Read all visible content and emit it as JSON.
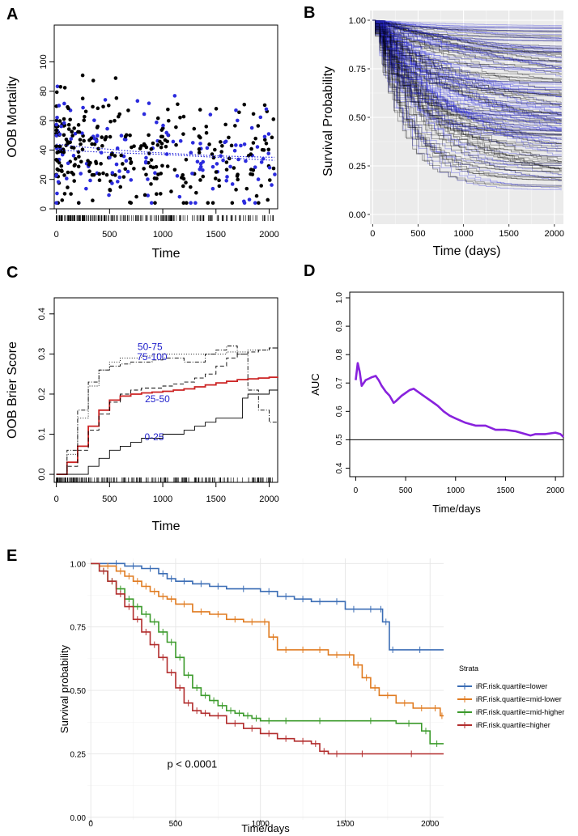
{
  "chart_data": [
    {
      "panel": "A",
      "type": "scatter",
      "xlabel": "Time",
      "ylabel": "OOB Mortality",
      "xlim": [
        -20,
        2080
      ],
      "ylim": [
        0,
        125
      ],
      "xticks": [
        0,
        500,
        1000,
        1500,
        2000
      ],
      "yticks": [
        0,
        20,
        40,
        60,
        80,
        100
      ],
      "colors": {
        "event": "#000000",
        "censored": "#2b2bdd"
      },
      "trend": {
        "x": [
          0,
          250,
          500,
          750,
          1000,
          1250,
          1500,
          1750,
          2050
        ],
        "y": [
          44,
          42,
          40.5,
          39,
          38,
          37,
          36,
          35.5,
          35
        ]
      },
      "trend2": {
        "x": [
          0,
          300,
          600,
          1000,
          1500,
          2050
        ],
        "y": [
          40,
          39,
          38,
          37,
          35,
          33
        ]
      }
    },
    {
      "panel": "B",
      "type": "line",
      "xlabel": "Time (days)",
      "ylabel": "Survival Probability",
      "xlim": [
        -30,
        2100
      ],
      "ylim": [
        -0.05,
        1.05
      ],
      "xticks": [
        0,
        500,
        1000,
        1500,
        2000
      ],
      "yticks": [
        "0.00",
        "0.25",
        "0.50",
        "0.75",
        "1.00"
      ],
      "colors": {
        "a": "#000000",
        "b": "#2b2bdd"
      }
    },
    {
      "panel": "C",
      "type": "line",
      "xlabel": "Time",
      "ylabel": "OOB Brier Score",
      "xlim": [
        -20,
        2080
      ],
      "ylim": [
        -0.02,
        0.44
      ],
      "xticks": [
        0,
        500,
        1000,
        1500,
        2000
      ],
      "yticks": [
        "0.0",
        "0.1",
        "0.2",
        "0.3",
        "0.4"
      ],
      "annotations": [
        {
          "text": "50-75",
          "x": 880,
          "y": 0.31
        },
        {
          "text": "75-100",
          "x": 900,
          "y": 0.285
        },
        {
          "text": "25-50",
          "x": 950,
          "y": 0.18
        },
        {
          "text": "0-25",
          "x": 920,
          "y": 0.085
        }
      ],
      "series": [
        {
          "style": "overall",
          "color": "#cc2222",
          "x": [
            0,
            100,
            200,
            300,
            400,
            500,
            600,
            700,
            800,
            900,
            1000,
            1100,
            1200,
            1300,
            1400,
            1500,
            1600,
            1700,
            1800,
            1900,
            2000,
            2080
          ],
          "y": [
            0,
            0.03,
            0.07,
            0.12,
            0.16,
            0.185,
            0.195,
            0.2,
            0.203,
            0.205,
            0.207,
            0.21,
            0.213,
            0.218,
            0.223,
            0.228,
            0.232,
            0.236,
            0.238,
            0.24,
            0.242,
            0.243
          ]
        },
        {
          "style": "solid",
          "color": "#000000",
          "x": [
            0,
            200,
            300,
            400,
            500,
            600,
            700,
            800,
            900,
            1000,
            1100,
            1200,
            1300,
            1400,
            1500,
            1600,
            1700,
            1750,
            1800,
            1900,
            2000,
            2080
          ],
          "y": [
            0,
            0,
            0.02,
            0.04,
            0.06,
            0.07,
            0.08,
            0.09,
            0.09,
            0.1,
            0.1,
            0.11,
            0.12,
            0.13,
            0.14,
            0.14,
            0.14,
            0.19,
            0.2,
            0.2,
            0.21,
            0.21
          ]
        },
        {
          "style": "dashed",
          "color": "#000000",
          "x": [
            0,
            100,
            200,
            300,
            400,
            500,
            600,
            700,
            800,
            900,
            1000,
            1100,
            1200,
            1300,
            1400,
            1500,
            1600,
            1700,
            1800,
            1900,
            2000,
            2080
          ],
          "y": [
            0,
            0.02,
            0.06,
            0.11,
            0.15,
            0.18,
            0.2,
            0.21,
            0.215,
            0.215,
            0.22,
            0.225,
            0.23,
            0.24,
            0.25,
            0.27,
            0.29,
            0.3,
            0.305,
            0.31,
            0.315,
            0.32
          ]
        },
        {
          "style": "dotted",
          "color": "#000000",
          "x": [
            0,
            100,
            200,
            300,
            400,
            500,
            600,
            700,
            800,
            900,
            1000,
            1200,
            1400,
            1600,
            1800,
            2000,
            2080
          ],
          "y": [
            0,
            0.05,
            0.14,
            0.22,
            0.26,
            0.28,
            0.29,
            0.29,
            0.295,
            0.3,
            0.3,
            0.3,
            0.3,
            0.305,
            0.31,
            0.315,
            0.315
          ]
        },
        {
          "style": "dotdash",
          "color": "#000000",
          "x": [
            0,
            100,
            200,
            300,
            400,
            500,
            600,
            700,
            800,
            900,
            1000,
            1100,
            1200,
            1300,
            1400,
            1500,
            1600,
            1700,
            1800,
            1900,
            2000,
            2080
          ],
          "y": [
            0,
            0.06,
            0.16,
            0.23,
            0.26,
            0.27,
            0.275,
            0.28,
            0.28,
            0.285,
            0.29,
            0.29,
            0.28,
            0.28,
            0.3,
            0.31,
            0.32,
            0.3,
            0.21,
            0.16,
            0.13,
            0.125
          ]
        }
      ]
    },
    {
      "panel": "D",
      "type": "line",
      "xlabel": "Time/days",
      "ylabel": "AUC",
      "xlim": [
        -60,
        2080
      ],
      "ylim": [
        0.37,
        1.02
      ],
      "xticks": [
        0,
        500,
        1000,
        1500,
        2000
      ],
      "yticks": [
        "0.4",
        "0.5",
        "0.6",
        "0.7",
        "0.8",
        "0.9",
        "1.0"
      ],
      "hline": 0.5,
      "color": "#8822dd",
      "x": [
        0,
        20,
        40,
        60,
        80,
        100,
        130,
        160,
        200,
        230,
        260,
        300,
        340,
        380,
        400,
        430,
        460,
        500,
        540,
        580,
        620,
        660,
        700,
        760,
        820,
        880,
        940,
        1000,
        1100,
        1200,
        1300,
        1400,
        1500,
        1600,
        1700,
        1750,
        1800,
        1900,
        2000,
        2050,
        2080
      ],
      "y": [
        0.71,
        0.77,
        0.74,
        0.69,
        0.7,
        0.71,
        0.715,
        0.72,
        0.725,
        0.71,
        0.69,
        0.67,
        0.655,
        0.63,
        0.635,
        0.645,
        0.655,
        0.665,
        0.675,
        0.68,
        0.67,
        0.66,
        0.65,
        0.635,
        0.62,
        0.6,
        0.585,
        0.575,
        0.56,
        0.55,
        0.55,
        0.535,
        0.535,
        0.53,
        0.52,
        0.515,
        0.52,
        0.52,
        0.525,
        0.52,
        0.51
      ]
    },
    {
      "panel": "E",
      "type": "line",
      "xlabel": "Time/days",
      "ylabel": "Survival probability",
      "xlim": [
        -20,
        2080
      ],
      "ylim": [
        -0.01,
        1.02
      ],
      "xticks": [
        0,
        500,
        1000,
        1500,
        2000
      ],
      "yticks": [
        "0.00",
        "0.25",
        "0.50",
        "0.75",
        "1.00"
      ],
      "legend_title": "Strata",
      "pvalue": "p < 0.0001",
      "series": [
        {
          "name": "iRF.risk.quartile=lower",
          "color": "#3b6db5",
          "x": [
            0,
            100,
            200,
            300,
            400,
            450,
            500,
            600,
            700,
            800,
            1000,
            1100,
            1200,
            1300,
            1400,
            1500,
            1600,
            1700,
            1720,
            1760,
            1800,
            2080
          ],
          "y": [
            1,
            1,
            0.99,
            0.98,
            0.96,
            0.94,
            0.93,
            0.92,
            0.91,
            0.9,
            0.89,
            0.87,
            0.86,
            0.85,
            0.85,
            0.82,
            0.82,
            0.82,
            0.77,
            0.66,
            0.66,
            0.66
          ]
        },
        {
          "name": "iRF.risk.quartile=mid-lower",
          "color": "#e07b20",
          "x": [
            0,
            50,
            150,
            200,
            250,
            300,
            350,
            400,
            450,
            500,
            600,
            700,
            800,
            900,
            1000,
            1050,
            1100,
            1200,
            1300,
            1400,
            1500,
            1550,
            1600,
            1650,
            1700,
            1800,
            1900,
            2000,
            2060,
            2080
          ],
          "y": [
            1,
            0.99,
            0.97,
            0.95,
            0.93,
            0.91,
            0.89,
            0.87,
            0.86,
            0.84,
            0.81,
            0.8,
            0.78,
            0.77,
            0.77,
            0.71,
            0.66,
            0.66,
            0.66,
            0.64,
            0.64,
            0.6,
            0.55,
            0.51,
            0.48,
            0.45,
            0.43,
            0.43,
            0.4,
            0.4
          ]
        },
        {
          "name": "iRF.risk.quartile=mid-higher",
          "color": "#3c9b2c",
          "x": [
            0,
            50,
            100,
            150,
            200,
            250,
            300,
            350,
            400,
            450,
            500,
            550,
            600,
            650,
            700,
            750,
            800,
            850,
            900,
            950,
            1000,
            1100,
            1200,
            1500,
            1800,
            1950,
            2000,
            2080
          ],
          "y": [
            1,
            0.97,
            0.93,
            0.9,
            0.86,
            0.83,
            0.8,
            0.77,
            0.73,
            0.69,
            0.63,
            0.56,
            0.51,
            0.48,
            0.46,
            0.44,
            0.42,
            0.41,
            0.4,
            0.39,
            0.38,
            0.38,
            0.38,
            0.38,
            0.37,
            0.34,
            0.29,
            0.29
          ]
        },
        {
          "name": "iRF.risk.quartile=higher",
          "color": "#b22d2d",
          "x": [
            0,
            50,
            100,
            150,
            200,
            250,
            300,
            350,
            400,
            450,
            500,
            550,
            600,
            650,
            700,
            800,
            900,
            1000,
            1100,
            1200,
            1300,
            1350,
            1400,
            1500,
            1700,
            2080
          ],
          "y": [
            1,
            0.97,
            0.93,
            0.88,
            0.83,
            0.78,
            0.73,
            0.68,
            0.63,
            0.57,
            0.51,
            0.45,
            0.42,
            0.41,
            0.4,
            0.37,
            0.35,
            0.33,
            0.31,
            0.3,
            0.29,
            0.26,
            0.25,
            0.25,
            0.25,
            0.25
          ]
        }
      ]
    }
  ]
}
